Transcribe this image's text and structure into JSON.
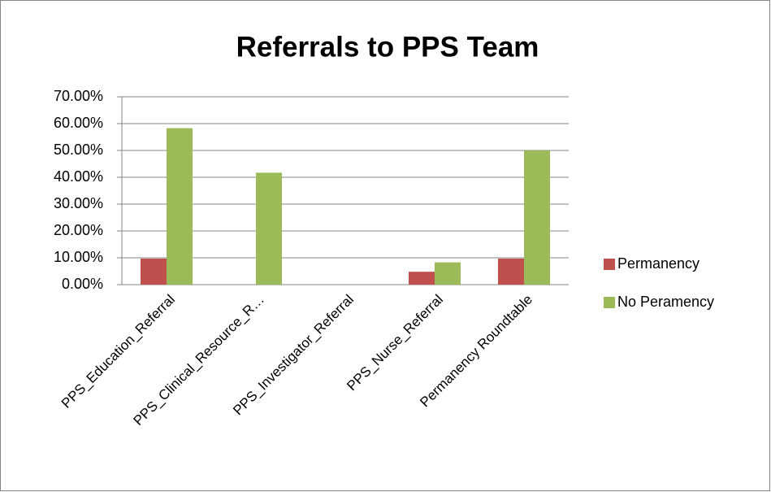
{
  "chart_data": {
    "type": "bar",
    "title": "Referrals to PPS Team",
    "categories": [
      "PPS_Education_Referral",
      "PPS_Clinical_Resource_R…",
      "PPS_Investigator_Referral",
      "PPS_Nurse_Referral",
      "Permanency Roundtable"
    ],
    "series": [
      {
        "name": "Permanency",
        "color": "#c0504d",
        "values": [
          9.7,
          0,
          0,
          4.8,
          9.7
        ]
      },
      {
        "name": "No Peramency",
        "color": "#9bbb59",
        "values": [
          58.3,
          41.7,
          0,
          8.3,
          50
        ]
      }
    ],
    "ylim": [
      0,
      70
    ],
    "yticks": [
      {
        "value": 0,
        "label": "0.00%"
      },
      {
        "value": 10,
        "label": "10.00%"
      },
      {
        "value": 20,
        "label": "20.00%"
      },
      {
        "value": 30,
        "label": "30.00%"
      },
      {
        "value": 40,
        "label": "40.00%"
      },
      {
        "value": 50,
        "label": "50.00%"
      },
      {
        "value": 60,
        "label": "60.00%"
      },
      {
        "value": 70,
        "label": "70.00%"
      }
    ],
    "grid": true,
    "legend": "right"
  }
}
